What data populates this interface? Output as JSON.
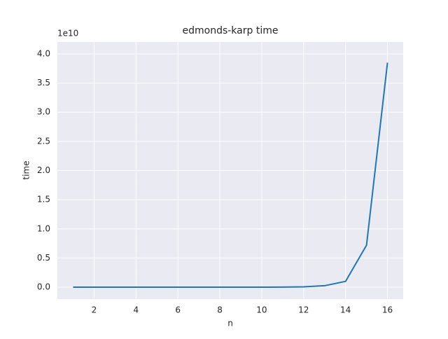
{
  "chart_data": {
    "type": "line",
    "title": "edmonds-karp time",
    "x_label": "n",
    "y_label": "time",
    "y_offset_label": "1e10",
    "x": [
      1,
      2,
      3,
      4,
      5,
      6,
      7,
      8,
      9,
      10,
      11,
      12,
      13,
      14,
      15,
      16
    ],
    "series": [
      {
        "name": "time",
        "color": "#1f77b4",
        "values": [
          0,
          0,
          0,
          0,
          0,
          0,
          0,
          0,
          0,
          0.0005,
          0.002,
          0.006,
          0.025,
          0.1,
          0.72,
          3.85
        ]
      }
    ],
    "xlim": [
      0.25,
      16.75
    ],
    "xticks": [
      2,
      4,
      6,
      8,
      10,
      12,
      14,
      16
    ],
    "ylim": [
      -0.204,
      4.204
    ],
    "yticks": [
      {
        "value": 0,
        "label": "0.0"
      },
      {
        "value": 0.5,
        "label": "0.5"
      },
      {
        "value": 1,
        "label": "1.0"
      },
      {
        "value": 1.5,
        "label": "1.5"
      },
      {
        "value": 2,
        "label": "2.0"
      },
      {
        "value": 2.5,
        "label": "2.5"
      },
      {
        "value": 3,
        "label": "3.0"
      },
      {
        "value": 3.5,
        "label": "3.5"
      },
      {
        "value": 4,
        "label": "4.0"
      }
    ],
    "grid": true
  }
}
